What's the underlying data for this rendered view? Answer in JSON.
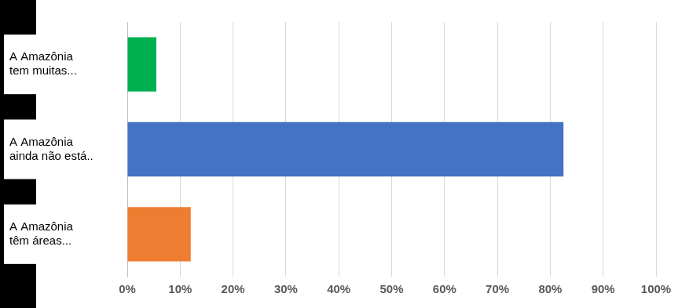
{
  "chart_data": {
    "type": "bar",
    "orientation": "horizontal",
    "categories": [
      "A Amazônia tem muitas...",
      "A Amazônia ainda não está..",
      "A Amazônia têm áreas..."
    ],
    "values": [
      5.5,
      82.5,
      12
    ],
    "colors": [
      "#00b050",
      "#4472c4",
      "#ed7d31"
    ],
    "xlim": [
      0,
      100
    ],
    "xticks": [
      {
        "value": 0,
        "label": "0%"
      },
      {
        "value": 10,
        "label": "10%"
      },
      {
        "value": 20,
        "label": "20%"
      },
      {
        "value": 30,
        "label": "30%"
      },
      {
        "value": 40,
        "label": "40%"
      },
      {
        "value": 50,
        "label": "50%"
      },
      {
        "value": 60,
        "label": "60%"
      },
      {
        "value": 70,
        "label": "70%"
      },
      {
        "value": 80,
        "label": "80%"
      },
      {
        "value": 90,
        "label": "90%"
      },
      {
        "value": 100,
        "label": "100%"
      }
    ],
    "grid": true
  }
}
